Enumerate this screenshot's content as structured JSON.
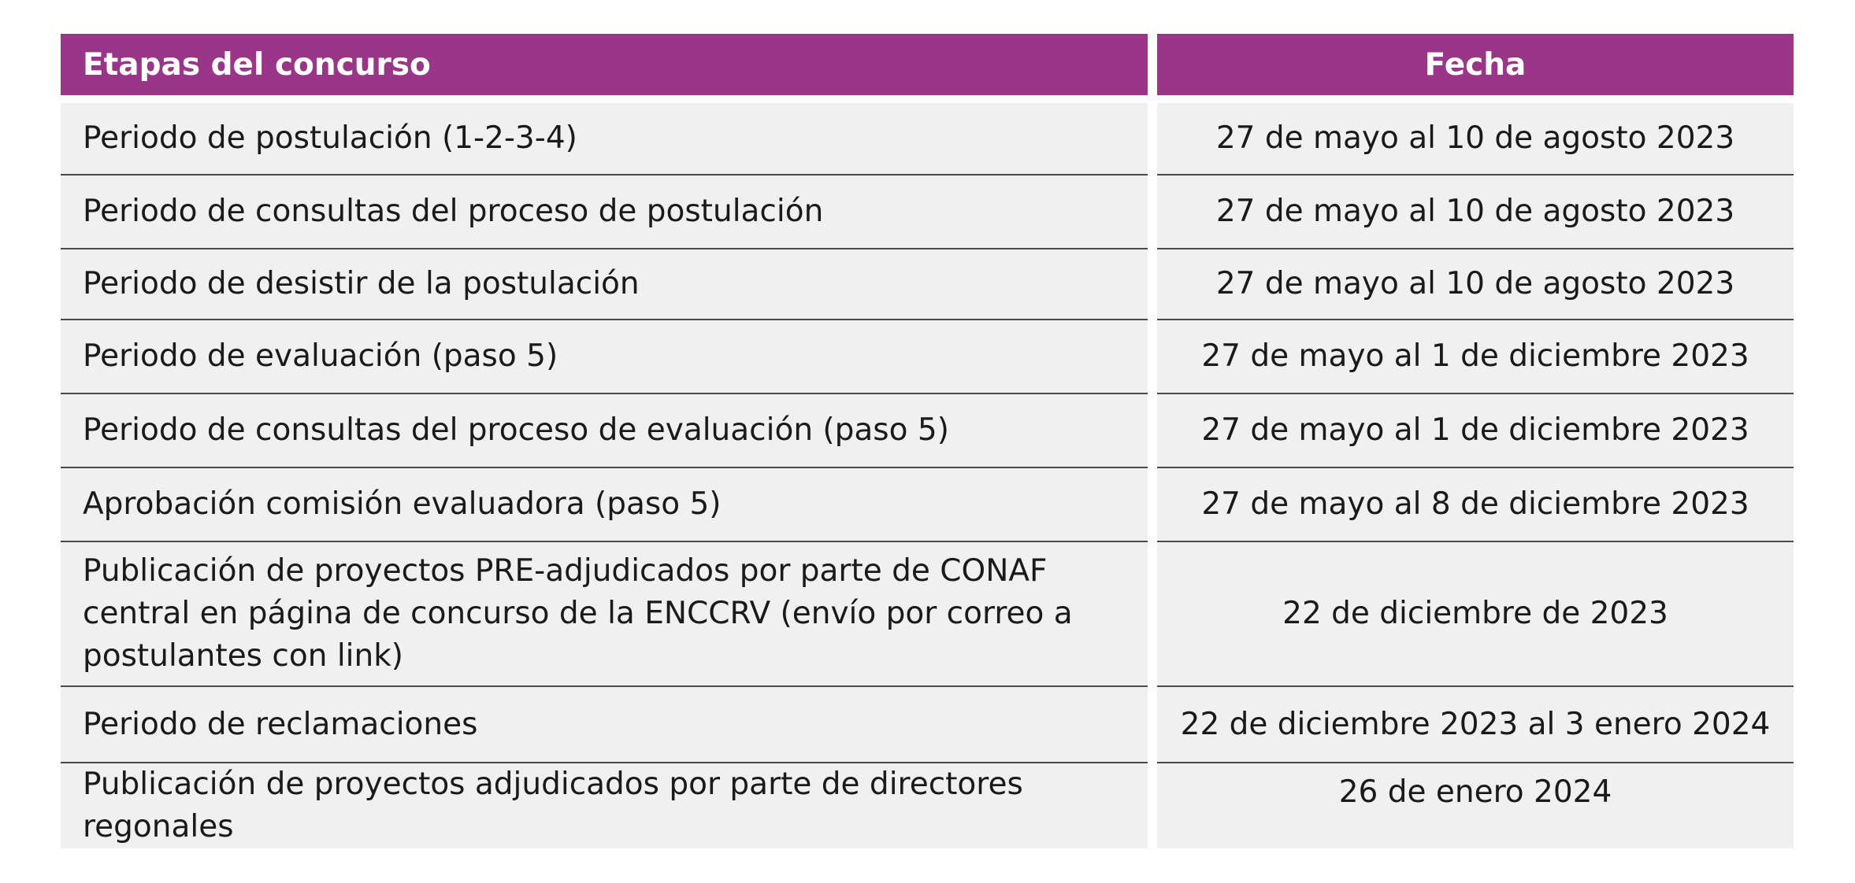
{
  "table": {
    "headers": {
      "stage": "Etapas del concurso",
      "date": "Fecha"
    },
    "rows": [
      {
        "stage": "Periodo de postulación (1-2-3-4)",
        "date": "27 de mayo al 10 de agosto 2023"
      },
      {
        "stage": "Periodo de consultas del proceso de postulación",
        "date": "27 de mayo al 10 de agosto 2023"
      },
      {
        "stage": "Periodo de desistir de la postulación",
        "date": "27 de mayo al 10 de agosto 2023"
      },
      {
        "stage": "Periodo de evaluación (paso 5)",
        "date": "27 de mayo al 1 de diciembre 2023"
      },
      {
        "stage": "Periodo de consultas del proceso de evaluación (paso 5)",
        "date": "27 de mayo al 1 de diciembre 2023"
      },
      {
        "stage": "Aprobación comisión evaluadora (paso 5)",
        "date": "27 de mayo al 8 de diciembre 2023"
      },
      {
        "stage": "Publicación de proyectos PRE-adjudicados por parte de CONAF central en página de concurso de la ENCCRV (envío por correo a postulantes con link)",
        "date": "22 de diciembre de 2023"
      },
      {
        "stage": "Periodo de reclamaciones",
        "date": "22 de diciembre 2023 al 3 enero 2024"
      },
      {
        "stage": "Publicación de proyectos adjudicados por parte de directores regonales",
        "date": "26 de enero 2024"
      }
    ]
  },
  "colors": {
    "header_bg": "#993688",
    "header_text": "#ffffff",
    "row_bg": "#f0f0f0",
    "divider": "#4a4a4a"
  }
}
